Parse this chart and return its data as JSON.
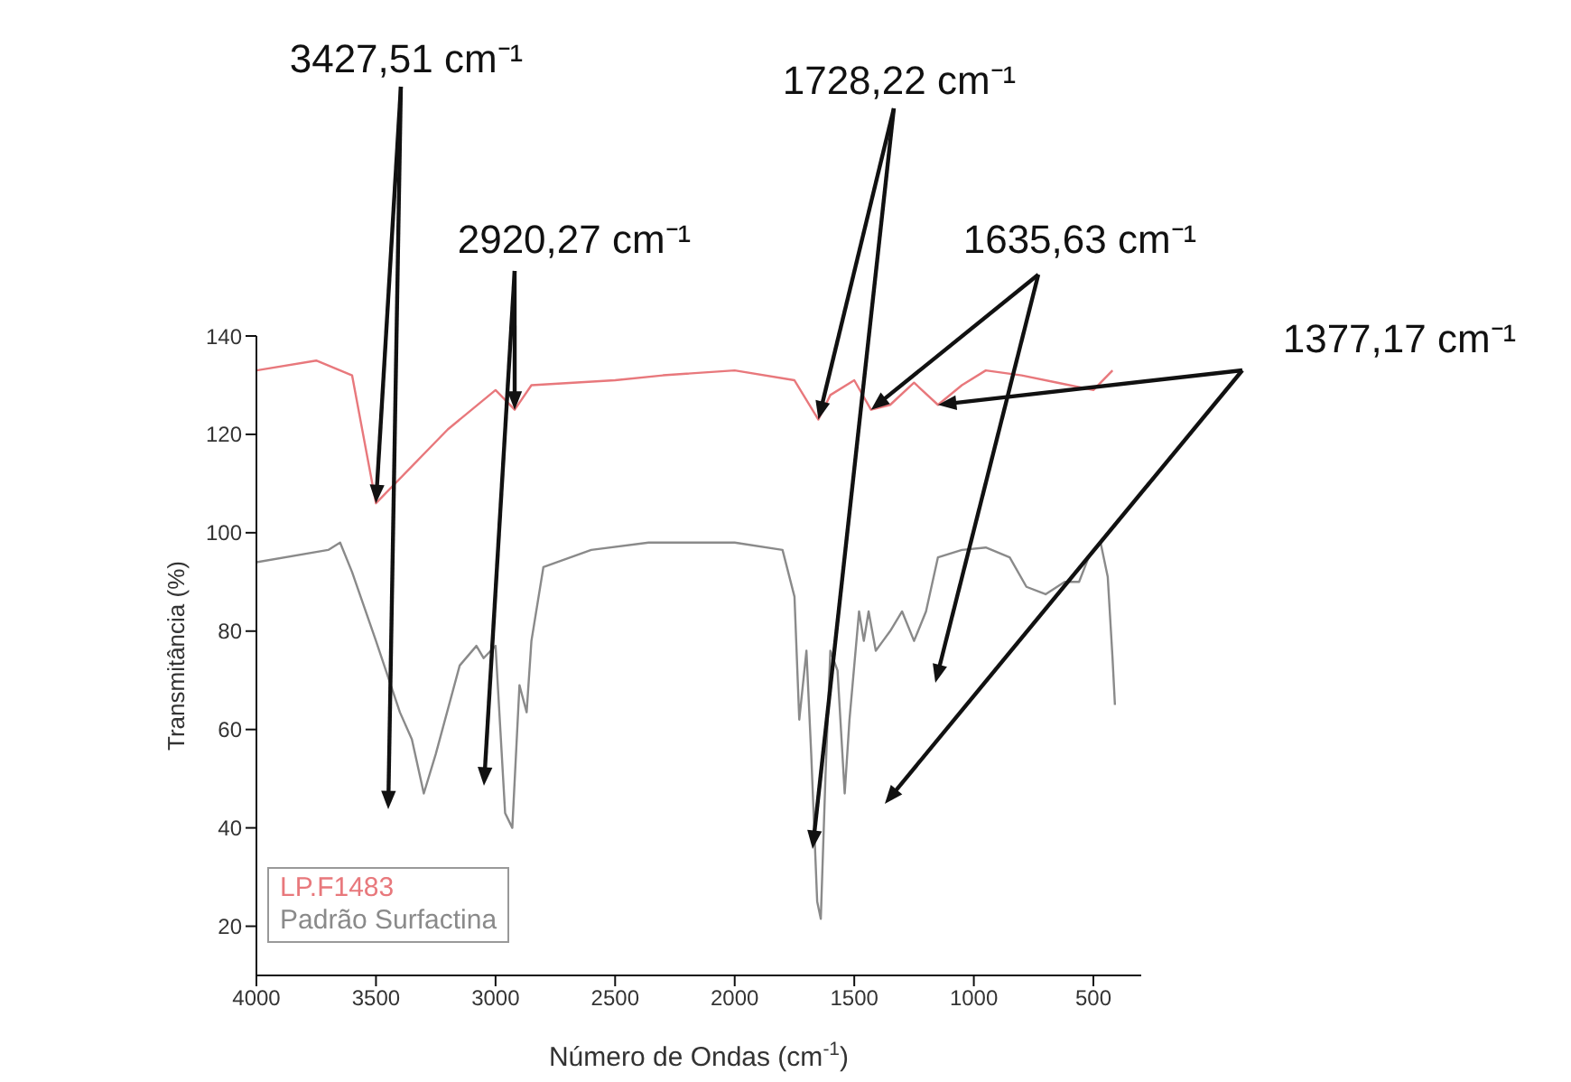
{
  "chart_data": {
    "type": "line",
    "xlabel": "Número de Ondas (cm$^{-1}$)",
    "ylabel": "Transmitância (%)",
    "annotations": [
      {
        "text": "3427,51 cm⁻¹",
        "x": 3500,
        "y": 106
      },
      {
        "text": "2920,27 cm⁻¹",
        "x": 2920,
        "y": 125
      },
      {
        "text": "1728,22 cm⁻¹",
        "x": 1650,
        "y": 123
      },
      {
        "text": "1635,63 cm⁻¹",
        "x": 1430,
        "y": 125
      },
      {
        "text": "1377,17 cm⁻¹",
        "x": 1150,
        "y": 126
      }
    ],
    "xlim": [
      4000,
      300
    ],
    "xticks": [
      4000,
      3500,
      3000,
      2500,
      2000,
      1500,
      1000,
      500
    ],
    "ylim": [
      10,
      140
    ],
    "yticks": [
      20,
      40,
      60,
      80,
      100,
      120,
      140
    ],
    "grid": false,
    "legend": "bottom left",
    "marker": "none",
    "line_style": "solid",
    "series": [
      {
        "name": "LP.F1483",
        "color": "#e8787c",
        "x": [
          4000,
          3750,
          3600,
          3500,
          3200,
          3000,
          2920,
          2850,
          2500,
          2300,
          2000,
          1750,
          1650,
          1600,
          1500,
          1430,
          1350,
          1250,
          1150,
          1050,
          950,
          800,
          650,
          500,
          420
        ],
        "values": [
          133,
          135,
          132,
          106,
          121,
          129,
          125,
          130,
          131,
          132,
          133,
          131,
          123,
          128,
          131,
          125,
          126,
          130.5,
          126,
          130,
          133,
          132,
          130.5,
          129,
          133
        ]
      },
      {
        "name": "Padrão Surfactina",
        "color": "#8a8a8a",
        "x": [
          4000,
          3700,
          3650,
          3600,
          3500,
          3400,
          3350,
          3300,
          3250,
          3150,
          3080,
          3050,
          3000,
          2960,
          2930,
          2900,
          2870,
          2850,
          2800,
          2600,
          2360,
          2000,
          1800,
          1750,
          1730,
          1700,
          1680,
          1655,
          1640,
          1620,
          1600,
          1570,
          1540,
          1520,
          1500,
          1480,
          1460,
          1440,
          1410,
          1380,
          1350,
          1300,
          1250,
          1200,
          1150,
          1050,
          950,
          850,
          780,
          700,
          620,
          560,
          520,
          470,
          440,
          420,
          410
        ],
        "values": [
          94,
          96.5,
          98,
          92,
          78,
          63.5,
          58,
          47,
          55,
          73,
          77,
          74.5,
          77,
          43,
          40,
          69,
          63.5,
          78,
          93,
          96.5,
          98,
          98,
          96.5,
          87,
          62,
          76,
          55,
          25,
          21.5,
          51,
          76,
          72,
          47,
          62,
          73,
          84,
          78,
          84,
          76,
          78,
          80,
          84,
          78,
          84,
          95,
          96.5,
          97,
          95,
          89,
          87.5,
          90,
          90,
          95,
          98,
          91,
          74.5,
          65
        ]
      }
    ]
  }
}
